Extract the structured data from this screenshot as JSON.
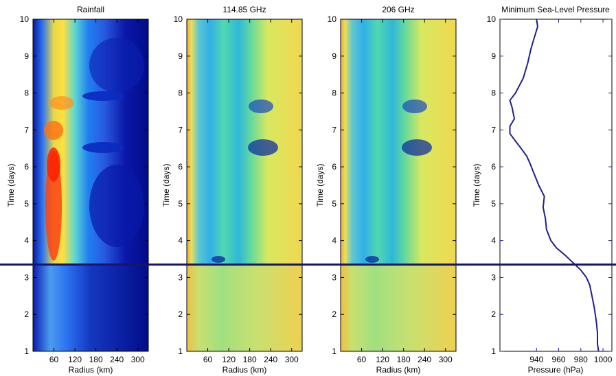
{
  "chart_data": [
    {
      "type": "heatmap",
      "title": "Rainfall",
      "xlabel": "Radius (km)",
      "ylabel": "Time (days)",
      "xlim": [
        0,
        330
      ],
      "ylim": [
        1,
        10
      ],
      "xticks": [
        60,
        120,
        180,
        240,
        300
      ],
      "yticks": [
        1,
        2,
        3,
        4,
        5,
        6,
        7,
        8,
        9,
        10
      ],
      "colormap": [
        "#00008f",
        "#0000ff",
        "#0080ff",
        "#00ffff",
        "#80ff80",
        "#ffff00",
        "#ff8000",
        "#ff0000",
        "#800000"
      ]
    },
    {
      "type": "heatmap",
      "title": "114.85 GHz",
      "xlabel": "Radius (km)",
      "ylabel": "Time (days)",
      "xlim": [
        0,
        330
      ],
      "ylim": [
        1,
        10
      ],
      "xticks": [
        60,
        120,
        180,
        240,
        300
      ],
      "yticks": [
        1,
        2,
        3,
        4,
        5,
        6,
        7,
        8,
        9,
        10
      ],
      "style": "filled contours",
      "colormap": [
        "#1030a0",
        "#2080ff",
        "#30d0e0",
        "#60e0b0",
        "#a0e070",
        "#e8e84a",
        "#f0b040"
      ]
    },
    {
      "type": "heatmap",
      "title": "206 GHz",
      "xlabel": "Radius (km)",
      "ylabel": "Time (days)",
      "xlim": [
        0,
        330
      ],
      "ylim": [
        1,
        10
      ],
      "xticks": [
        60,
        120,
        180,
        240,
        300
      ],
      "yticks": [
        1,
        2,
        3,
        4,
        5,
        6,
        7,
        8,
        9,
        10
      ],
      "style": "filled contours",
      "colormap": [
        "#1030a0",
        "#2080ff",
        "#30d0e0",
        "#60e0b0",
        "#a0e070",
        "#e8e84a",
        "#f0a040"
      ]
    },
    {
      "type": "line",
      "title": "Minimum Sea-Level Pressure",
      "xlabel": "Pressure (hPa)",
      "ylabel": "Time (days)",
      "xlim": [
        907,
        1008
      ],
      "ylim": [
        1,
        10
      ],
      "xticks": [
        940,
        960,
        980,
        1000
      ],
      "yticks": [
        1,
        2,
        3,
        4,
        5,
        6,
        7,
        8,
        9,
        10
      ],
      "line_color": "#1f1f8f",
      "series": [
        {
          "points": [
            [
              996,
              1.0
            ],
            [
              995,
              1.2
            ],
            [
              995,
              1.5
            ],
            [
              994,
              1.8
            ],
            [
              993,
              2.0
            ],
            [
              992,
              2.2
            ],
            [
              990,
              2.5
            ],
            [
              988,
              2.8
            ],
            [
              985,
              3.0
            ],
            [
              980,
              3.2
            ],
            [
              973,
              3.4
            ],
            [
              966,
              3.6
            ],
            [
              958,
              3.8
            ],
            [
              953,
              4.0
            ],
            [
              949,
              4.3
            ],
            [
              948,
              4.6
            ],
            [
              946,
              4.9
            ],
            [
              947,
              5.2
            ],
            [
              942,
              5.5
            ],
            [
              938,
              5.8
            ],
            [
              934,
              6.1
            ],
            [
              931,
              6.3
            ],
            [
              926,
              6.5
            ],
            [
              921,
              6.7
            ],
            [
              916,
              6.9
            ],
            [
              916,
              7.1
            ],
            [
              920,
              7.3
            ],
            [
              918,
              7.6
            ],
            [
              916,
              7.8
            ],
            [
              921,
              8.0
            ],
            [
              928,
              8.4
            ],
            [
              932,
              8.8
            ],
            [
              935,
              9.2
            ],
            [
              938,
              9.5
            ],
            [
              941,
              9.8
            ],
            [
              940,
              10.0
            ]
          ]
        }
      ]
    }
  ],
  "marker_time": 3.35,
  "marker_color": "#15166a"
}
